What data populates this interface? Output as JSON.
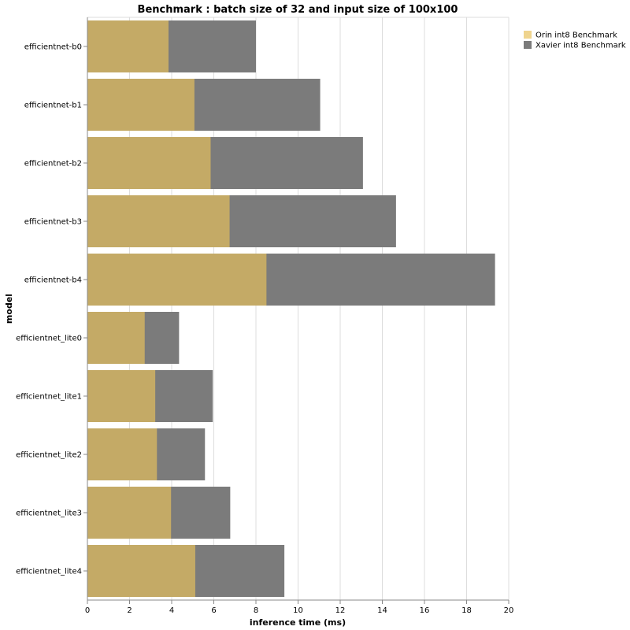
{
  "chart_data": {
    "type": "bar",
    "orientation": "horizontal",
    "stacked": false,
    "overlay": true,
    "title": "Benchmark : batch size of 32 and input size of 100x100",
    "xlabel": "inference time (ms)",
    "ylabel": "model",
    "xlim": [
      0,
      20
    ],
    "xticks": [
      "0",
      "2",
      "4",
      "6",
      "8",
      "10",
      "12",
      "14",
      "16",
      "18",
      "20"
    ],
    "grid": true,
    "legend_position": "top-right",
    "categories": [
      "efficientnet-b0",
      "efficientnet-b1",
      "efficientnet-b2",
      "efficientnet-b3",
      "efficientnet-b4",
      "efficientnet_lite0",
      "efficientnet_lite1",
      "efficientnet_lite2",
      "efficientnet_lite3",
      "efficientnet_lite4"
    ],
    "series": [
      {
        "name": "Xavier int8 Benchmark",
        "color": "#7b7b7b",
        "values": [
          8.0,
          11.05,
          13.08,
          14.65,
          19.35,
          4.35,
          5.95,
          5.58,
          6.78,
          9.35
        ]
      },
      {
        "name": "Orin int8 Benchmark",
        "color": "#efd48e",
        "values": [
          3.85,
          5.08,
          5.85,
          6.75,
          8.5,
          2.72,
          3.22,
          3.3,
          3.97,
          5.12
        ]
      }
    ],
    "colors": {
      "orin_bar_overlay": "#c4aa66",
      "orin_legend": "#efd48e",
      "xavier": "#7b7b7b"
    }
  }
}
